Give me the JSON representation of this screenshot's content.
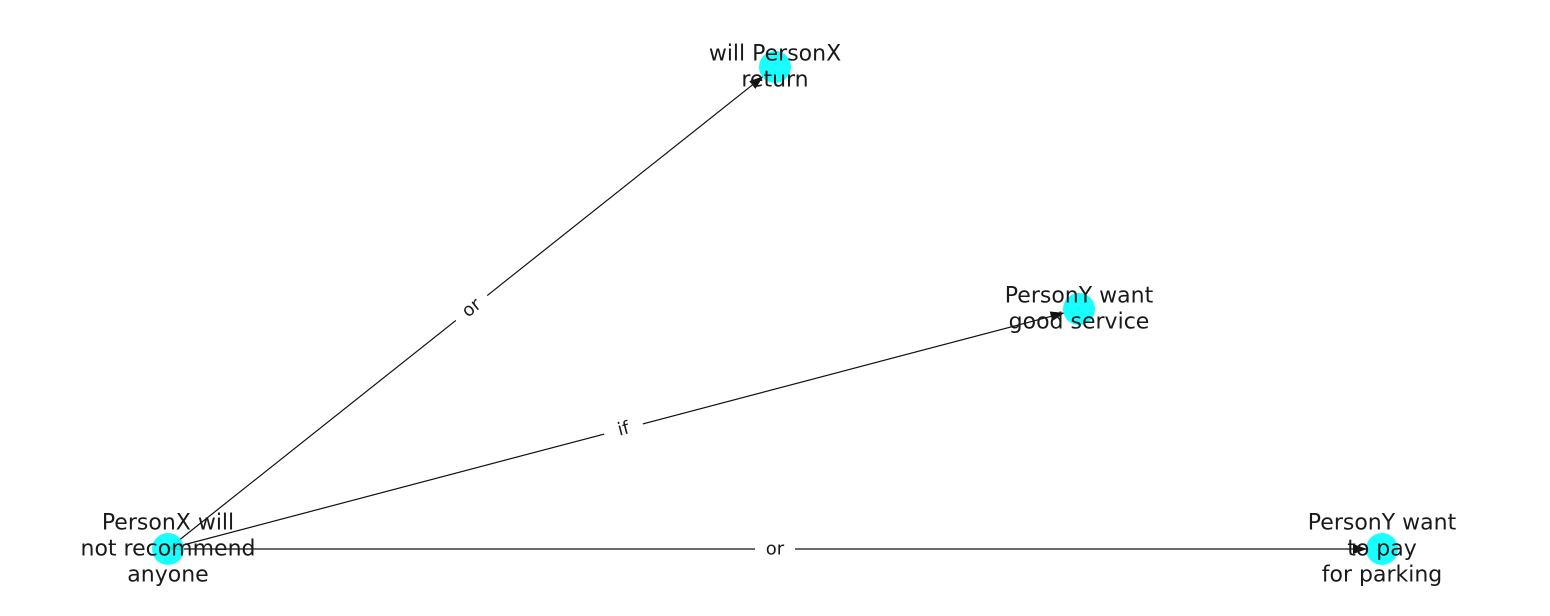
{
  "graph": {
    "node_color": "#00ffff",
    "nodes": [
      {
        "id": "n0",
        "lines": [
          "PersonX will",
          "not recommend",
          "anyone"
        ]
      },
      {
        "id": "n1",
        "lines": [
          "will PersonX",
          "return"
        ]
      },
      {
        "id": "n2",
        "lines": [
          "PersonY want",
          "good service"
        ]
      },
      {
        "id": "n3",
        "lines": [
          "PersonY want",
          "to pay",
          "for parking"
        ]
      }
    ],
    "edges": [
      {
        "source": "n0",
        "target": "n1",
        "label": "or"
      },
      {
        "source": "n0",
        "target": "n2",
        "label": "if"
      },
      {
        "source": "n0",
        "target": "n3",
        "label": "or"
      }
    ]
  }
}
